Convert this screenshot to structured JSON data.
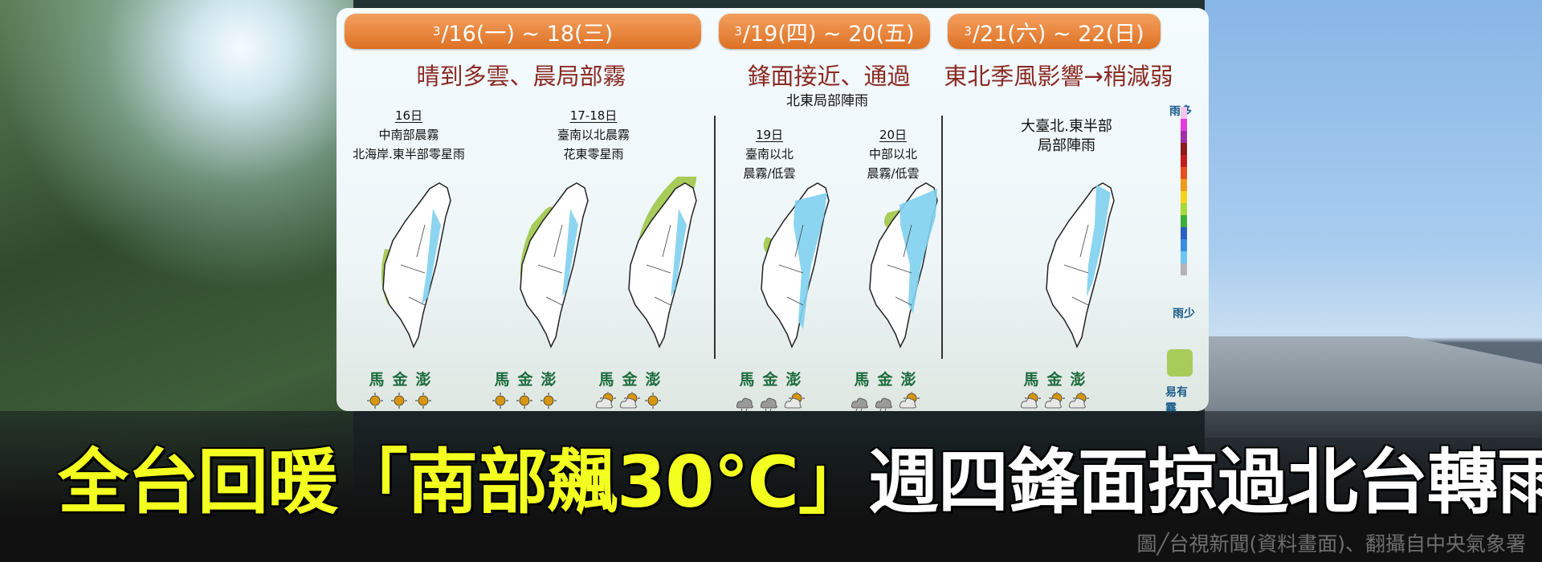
{
  "panel": {
    "periods": [
      {
        "sup": "3",
        "label": "/16(一) ~ 18(三)",
        "summary": "晴到多雲、晨局部霧"
      },
      {
        "sup": "3",
        "label": "/19(四) ~ 20(五)",
        "summary": "鋒面接近、通過"
      },
      {
        "sup": "3",
        "label": "/21(六) ~ 22(日)",
        "summary": "東北季風影響→稍減弱"
      }
    ],
    "region_note": "北東局部陣雨",
    "days": [
      {
        "day": "16日",
        "line1": "中南部晨霧",
        "line2": "北海岸.東半部零星雨"
      },
      {
        "day": "17-18日",
        "line1": "臺南以北晨霧",
        "line2": "花東零星雨"
      },
      {
        "day": "19日",
        "line1": "臺南以北",
        "line2": "晨霧/低雲"
      },
      {
        "day": "20日",
        "line1": "中部以北",
        "line2": "晨霧/低雲"
      },
      {
        "day": "",
        "line1": "大臺北.東半部",
        "line2": "局部陣雨"
      }
    ],
    "islands_label": "馬金澎",
    "outlying_icons": [
      [
        "sunny",
        "sunny",
        "sunny"
      ],
      [
        "sunny",
        "sunny",
        "sunny"
      ],
      [
        "partly-cloudy",
        "partly-cloudy",
        "sunny"
      ],
      [
        "rain-cloud",
        "rain-cloud",
        "partly-cloudy"
      ],
      [
        "rain-cloud",
        "rain-cloud",
        "partly-cloudy"
      ],
      [
        "partly-cloudy",
        "partly-cloudy",
        "partly-cloudy"
      ]
    ],
    "legend": {
      "more_rain": "雨多",
      "less_rain": "雨少",
      "fog": "易有霧",
      "colors": [
        "#f3c6f0",
        "#e23ce0",
        "#a02fa8",
        "#8c1c1c",
        "#c21d1d",
        "#e5501c",
        "#f09a1c",
        "#f2d21c",
        "#a8d83a",
        "#3cae3c",
        "#2a5fc6",
        "#3a8ee0",
        "#6ec6f0",
        "#b4b4b4"
      ],
      "fog_color": "#a7cc5a"
    }
  },
  "headline": {
    "highlight": "全台回暖「南部飆30℃」",
    "rest": "週四鋒面掠過北台轉雨"
  },
  "credit": "圖╱台視新聞(資料畫面)、翻攝自中央氣象署"
}
